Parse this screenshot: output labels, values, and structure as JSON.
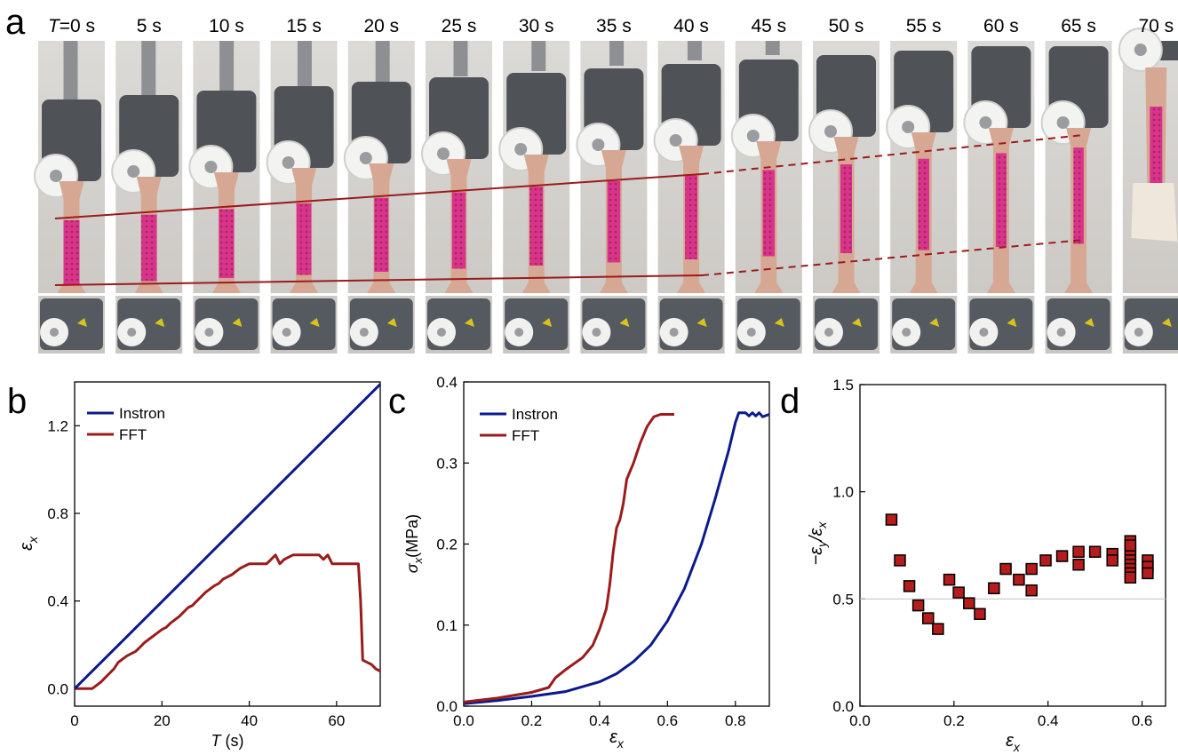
{
  "panel_labels": [
    "a",
    "b",
    "c",
    "d"
  ],
  "photo_strip": {
    "time_labels": [
      "T=0 s",
      "5 s",
      "10 s",
      "15 s",
      "20 s",
      "25 s",
      "30 s",
      "35 s",
      "40 s",
      "45 s",
      "50 s",
      "55 s",
      "60 s",
      "65 s",
      "70 s"
    ],
    "specimen_color": "#d6a894",
    "pattern_color": "#d9338a",
    "guide_line_color": "#9b1b1b"
  },
  "colors": {
    "instron": "#0b1a8c",
    "fft": "#9b1b1b",
    "marker_fill": "#b51c1c"
  },
  "chart_data": [
    {
      "id": "b",
      "type": "line",
      "xlabel_main": "T",
      "xlabel_unit": " (s)",
      "ylabel": "εx",
      "xlim": [
        0,
        70
      ],
      "ylim": [
        -0.08,
        1.4
      ],
      "xticks": [
        0,
        20,
        40,
        60
      ],
      "xtick_labels": [
        "0",
        "20",
        "40",
        "60"
      ],
      "yticks": [
        0,
        0.4,
        0.8,
        1.2
      ],
      "ytick_labels": [
        "0.0",
        "0.4",
        "0.8",
        "1.2"
      ],
      "legend": "top-left",
      "series": [
        {
          "name": "Instron",
          "x": [
            0,
            70
          ],
          "y": [
            0,
            1.39
          ]
        },
        {
          "name": "FFT",
          "x": [
            0,
            4,
            6,
            8,
            9,
            10,
            12,
            14,
            15,
            16,
            18,
            20,
            21,
            22,
            24,
            26,
            27,
            28,
            30,
            32,
            33,
            34,
            36,
            38,
            40,
            41,
            42,
            44,
            45,
            46,
            47,
            48,
            50,
            52,
            54,
            56,
            57,
            58,
            59,
            60,
            62,
            64,
            65,
            65.5,
            66,
            67,
            68,
            69,
            70
          ],
          "y": [
            0,
            0,
            0.03,
            0.07,
            0.09,
            0.12,
            0.15,
            0.17,
            0.19,
            0.21,
            0.24,
            0.27,
            0.28,
            0.3,
            0.33,
            0.37,
            0.38,
            0.4,
            0.44,
            0.47,
            0.48,
            0.5,
            0.52,
            0.55,
            0.57,
            0.57,
            0.57,
            0.57,
            0.59,
            0.61,
            0.57,
            0.59,
            0.61,
            0.61,
            0.61,
            0.61,
            0.59,
            0.61,
            0.57,
            0.57,
            0.57,
            0.57,
            0.57,
            0.4,
            0.13,
            0.12,
            0.11,
            0.09,
            0.08
          ]
        }
      ]
    },
    {
      "id": "c",
      "type": "line",
      "xlabel": "εx",
      "ylabel": "σx(MPa)",
      "xlim": [
        0,
        0.9
      ],
      "ylim": [
        0,
        0.4
      ],
      "xticks": [
        0,
        0.2,
        0.4,
        0.6,
        0.8
      ],
      "xtick_labels": [
        "0.0",
        "0.2",
        "0.4",
        "0.6",
        "0.8"
      ],
      "yticks": [
        0,
        0.1,
        0.2,
        0.3,
        0.4
      ],
      "ytick_labels": [
        "0.0",
        "0.1",
        "0.2",
        "0.3",
        "0.4"
      ],
      "legend": "top-left",
      "series": [
        {
          "name": "Instron",
          "x": [
            0,
            0.1,
            0.2,
            0.3,
            0.4,
            0.45,
            0.5,
            0.55,
            0.6,
            0.65,
            0.7,
            0.74,
            0.78,
            0.8,
            0.81,
            0.83,
            0.84,
            0.85,
            0.86,
            0.87,
            0.88,
            0.9
          ],
          "y": [
            0.003,
            0.007,
            0.012,
            0.018,
            0.03,
            0.04,
            0.055,
            0.075,
            0.105,
            0.145,
            0.2,
            0.255,
            0.315,
            0.35,
            0.362,
            0.362,
            0.358,
            0.362,
            0.358,
            0.362,
            0.357,
            0.36
          ]
        },
        {
          "name": "FFT",
          "x": [
            0,
            0.1,
            0.2,
            0.25,
            0.27,
            0.3,
            0.35,
            0.38,
            0.4,
            0.42,
            0.43,
            0.44,
            0.45,
            0.46,
            0.47,
            0.48,
            0.5,
            0.52,
            0.54,
            0.56,
            0.58,
            0.6,
            0.62
          ],
          "y": [
            0.005,
            0.01,
            0.017,
            0.023,
            0.035,
            0.045,
            0.06,
            0.075,
            0.095,
            0.12,
            0.15,
            0.19,
            0.22,
            0.23,
            0.25,
            0.28,
            0.3,
            0.325,
            0.345,
            0.357,
            0.36,
            0.36,
            0.36
          ]
        }
      ]
    },
    {
      "id": "d",
      "type": "scatter",
      "xlabel": "εx",
      "ylabel": "−εy/εx",
      "xlim": [
        0,
        0.65
      ],
      "ylim": [
        0,
        1.5
      ],
      "xticks": [
        0,
        0.2,
        0.4,
        0.6
      ],
      "xtick_labels": [
        "0.0",
        "0.2",
        "0.4",
        "0.6"
      ],
      "yticks": [
        0,
        0.5,
        1.0,
        1.5
      ],
      "ytick_labels": [
        "0.0",
        "0.5",
        "1.0",
        "1.5"
      ],
      "reference_line": 0.5,
      "series": [
        {
          "x": [
            0.067,
            0.085,
            0.105,
            0.124,
            0.145,
            0.166,
            0.19,
            0.21,
            0.232,
            0.255,
            0.285,
            0.31,
            0.338,
            0.365,
            0.365,
            0.395,
            0.43,
            0.465,
            0.465,
            0.5,
            0.537,
            0.537,
            0.575,
            0.575,
            0.575,
            0.575,
            0.575,
            0.575,
            0.575,
            0.575,
            0.575,
            0.575,
            0.612,
            0.612,
            0.612
          ],
          "y": [
            0.87,
            0.68,
            0.56,
            0.47,
            0.41,
            0.36,
            0.59,
            0.53,
            0.48,
            0.43,
            0.55,
            0.64,
            0.59,
            0.64,
            0.54,
            0.68,
            0.7,
            0.72,
            0.66,
            0.72,
            0.71,
            0.68,
            0.77,
            0.74,
            0.72,
            0.7,
            0.68,
            0.66,
            0.64,
            0.62,
            0.6,
            0.75,
            0.68,
            0.65,
            0.62
          ]
        }
      ]
    }
  ]
}
